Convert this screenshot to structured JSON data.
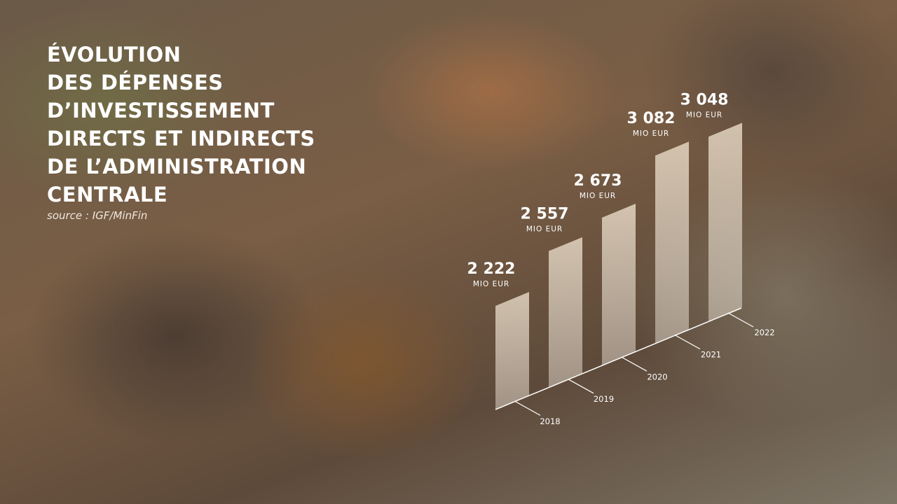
{
  "chart_data": {
    "type": "bar",
    "title": [
      "ÉVOLUTION",
      "DES DÉPENSES",
      "D’INVESTISSEMENT",
      "DIRECTS ET INDIRECTS",
      "DE L’ADMINISTRATION",
      "CENTRALE"
    ],
    "subtitle": "source : IGF/MinFin",
    "unit": "MIO EUR",
    "categories": [
      "2018",
      "2019",
      "2020",
      "2021",
      "2022"
    ],
    "values": [
      2222,
      2557,
      2673,
      3082,
      3048
    ],
    "value_labels": [
      "2 222",
      "2 557",
      "2 673",
      "3 082",
      "3 048"
    ],
    "color": "#efe6d8"
  }
}
